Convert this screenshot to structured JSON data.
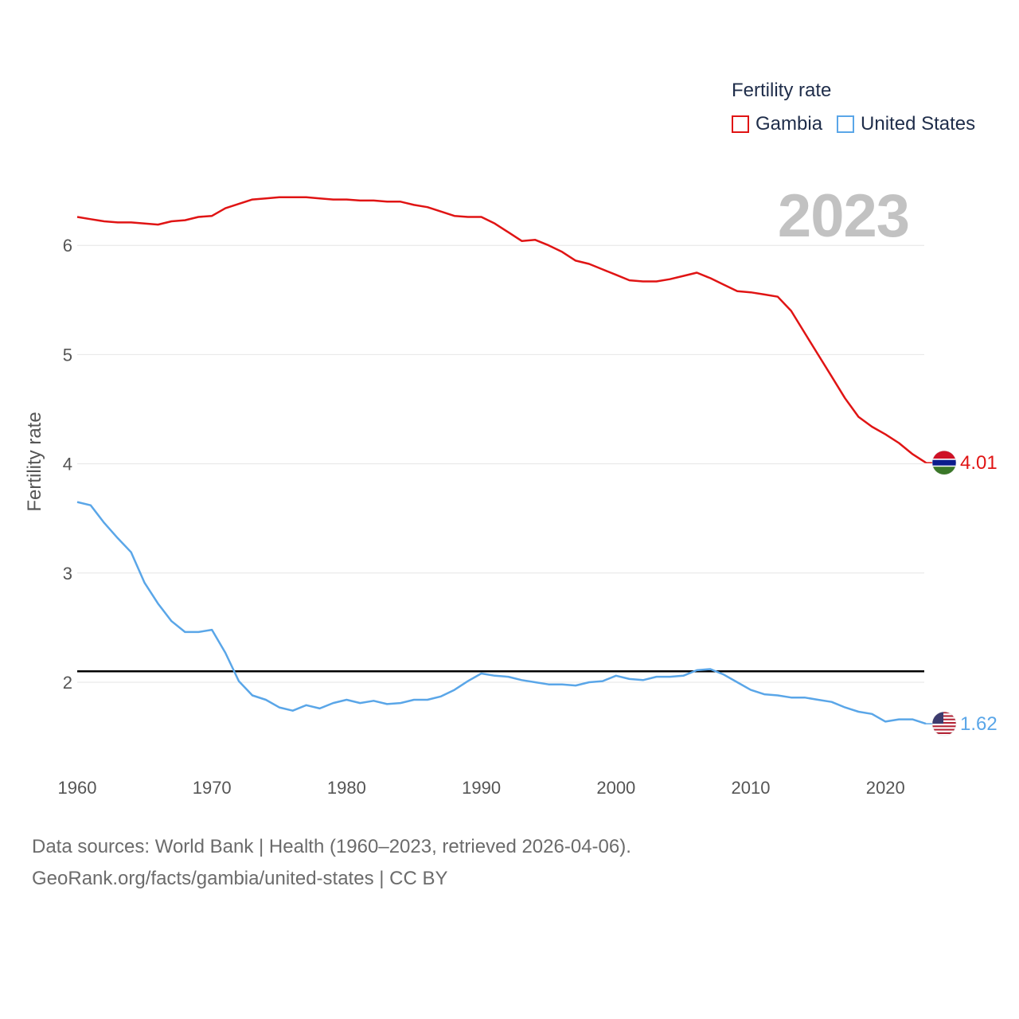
{
  "legend": {
    "title": "Fertility rate",
    "items": [
      {
        "label": "Gambia",
        "color": "#e01414"
      },
      {
        "label": "United States",
        "color": "#5aa6e8"
      }
    ]
  },
  "year_label": "2023",
  "footer": {
    "line1": "Data sources: World Bank | Health (1960–2023, retrieved 2026-04-06).",
    "line2": "GeoRank.org/facts/gambia/united-states | CC BY"
  },
  "chart_data": {
    "type": "line",
    "title": "Fertility rate",
    "xlabel": "",
    "ylabel": "Fertility rate",
    "xlim": [
      1960,
      2023
    ],
    "ylim": [
      1.2,
      7
    ],
    "x_ticks": [
      1960,
      1970,
      1980,
      1990,
      2000,
      2010,
      2020
    ],
    "y_ticks": [
      2,
      3,
      4,
      5,
      6
    ],
    "grid": true,
    "legend_position": "top-right",
    "reference_line": {
      "y": 2.1,
      "color": "#000000"
    },
    "x": [
      1960,
      1961,
      1962,
      1963,
      1964,
      1965,
      1966,
      1967,
      1968,
      1969,
      1970,
      1971,
      1972,
      1973,
      1974,
      1975,
      1976,
      1977,
      1978,
      1979,
      1980,
      1981,
      1982,
      1983,
      1984,
      1985,
      1986,
      1987,
      1988,
      1989,
      1990,
      1991,
      1992,
      1993,
      1994,
      1995,
      1996,
      1997,
      1998,
      1999,
      2000,
      2001,
      2002,
      2003,
      2004,
      2005,
      2006,
      2007,
      2008,
      2009,
      2010,
      2011,
      2012,
      2013,
      2014,
      2015,
      2016,
      2017,
      2018,
      2019,
      2020,
      2021,
      2022,
      2023
    ],
    "series": [
      {
        "name": "Gambia",
        "color": "#e01414",
        "end_label": "4.01",
        "flag": "gambia-flag",
        "values": [
          6.26,
          6.24,
          6.22,
          6.21,
          6.21,
          6.2,
          6.19,
          6.22,
          6.23,
          6.26,
          6.27,
          6.34,
          6.38,
          6.42,
          6.43,
          6.44,
          6.44,
          6.44,
          6.43,
          6.42,
          6.42,
          6.41,
          6.41,
          6.4,
          6.4,
          6.37,
          6.35,
          6.31,
          6.27,
          6.26,
          6.26,
          6.2,
          6.12,
          6.04,
          6.05,
          6.0,
          5.94,
          5.86,
          5.83,
          5.78,
          5.73,
          5.68,
          5.67,
          5.67,
          5.69,
          5.72,
          5.75,
          5.7,
          5.64,
          5.58,
          5.57,
          5.55,
          5.53,
          5.4,
          5.2,
          5.0,
          4.8,
          4.6,
          4.43,
          4.34,
          4.27,
          4.19,
          4.09,
          4.01
        ]
      },
      {
        "name": "United States",
        "color": "#5aa6e8",
        "end_label": "1.62",
        "flag": "united-states-flag",
        "values": [
          3.65,
          3.62,
          3.46,
          3.32,
          3.19,
          2.91,
          2.72,
          2.56,
          2.46,
          2.46,
          2.48,
          2.27,
          2.01,
          1.88,
          1.84,
          1.77,
          1.74,
          1.79,
          1.76,
          1.81,
          1.84,
          1.81,
          1.83,
          1.8,
          1.81,
          1.84,
          1.84,
          1.87,
          1.93,
          2.01,
          2.08,
          2.06,
          2.05,
          2.02,
          2.0,
          1.98,
          1.98,
          1.97,
          2.0,
          2.01,
          2.06,
          2.03,
          2.02,
          2.05,
          2.05,
          2.06,
          2.11,
          2.12,
          2.07,
          2.0,
          1.93,
          1.89,
          1.88,
          1.86,
          1.86,
          1.84,
          1.82,
          1.77,
          1.73,
          1.71,
          1.64,
          1.66,
          1.66,
          1.62
        ]
      }
    ]
  }
}
